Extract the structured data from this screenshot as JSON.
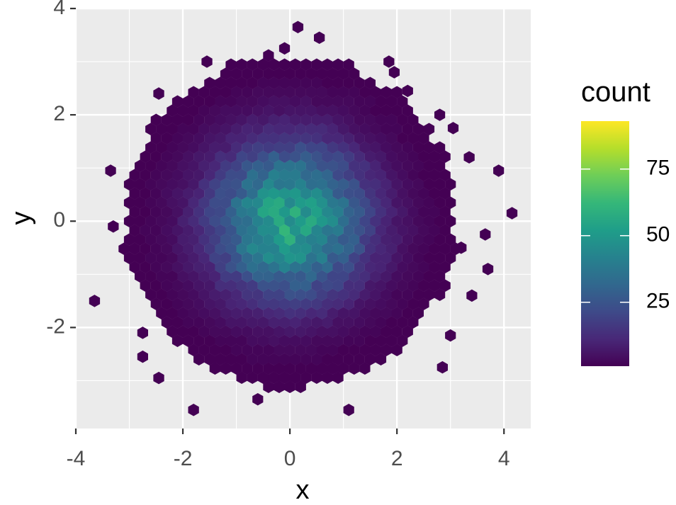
{
  "chart_data": {
    "type": "heatmap",
    "subtype": "hexbin",
    "title": "",
    "xlabel": "x",
    "ylabel": "y",
    "xlim": [
      -4,
      4.5
    ],
    "ylim": [
      -3.9,
      4
    ],
    "x_major_ticks": [
      -4,
      -2,
      0,
      2,
      4
    ],
    "y_major_ticks": [
      -2,
      0,
      2,
      4
    ],
    "x_tick_labels": [
      "-4",
      "-2",
      "0",
      "2",
      "4"
    ],
    "y_tick_labels": [
      "-2",
      "0",
      "2",
      "4"
    ],
    "grid": true,
    "panel_background": "#ebebeb",
    "legend": {
      "title": "count",
      "position": "right",
      "min": 1,
      "max": 93,
      "ticks": [
        25,
        50,
        75
      ],
      "tick_labels": [
        "25",
        "50",
        "75"
      ],
      "colors": [
        "#440154",
        "#482878",
        "#3e4a89",
        "#31688e",
        "#26828e",
        "#1f9e89",
        "#35b779",
        "#6ece58",
        "#b5de2b",
        "#fde725"
      ]
    },
    "hex_bins": {
      "distribution": "bivariate normal, mean (0, 0), sd 1 in x and y",
      "approximate_points": 10000,
      "bins": 30,
      "max_count": 93
    },
    "outlier_cells": [
      [
        0.15,
        3.65
      ],
      [
        0.55,
        3.45
      ],
      [
        -0.1,
        3.25
      ],
      [
        -1.55,
        3.0
      ],
      [
        1.85,
        3.0
      ],
      [
        1.95,
        2.8
      ],
      [
        -2.45,
        2.4
      ],
      [
        2.2,
        2.45
      ],
      [
        2.8,
        2.0
      ],
      [
        3.05,
        1.75
      ],
      [
        -3.35,
        0.95
      ],
      [
        3.35,
        1.2
      ],
      [
        3.9,
        0.95
      ],
      [
        4.15,
        0.15
      ],
      [
        3.65,
        -0.25
      ],
      [
        3.7,
        -0.9
      ],
      [
        3.4,
        -1.4
      ],
      [
        -3.65,
        -1.5
      ],
      [
        -2.75,
        -2.1
      ],
      [
        3.0,
        -2.15
      ],
      [
        -2.75,
        -2.55
      ],
      [
        -2.45,
        -2.95
      ],
      [
        2.85,
        -2.75
      ],
      [
        -1.8,
        -3.55
      ],
      [
        1.1,
        -3.55
      ],
      [
        -0.6,
        -3.35
      ],
      [
        -3.3,
        -0.1
      ],
      [
        3.2,
        -0.5
      ]
    ]
  }
}
